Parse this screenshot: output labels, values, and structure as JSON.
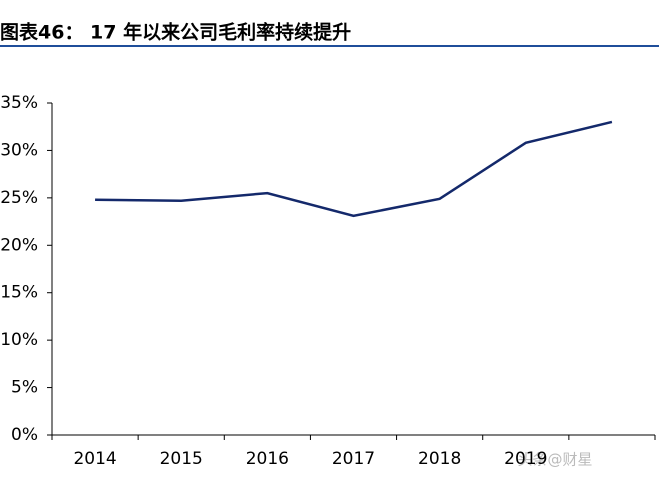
{
  "chart_data": {
    "type": "line",
    "title": "图表46：  17 年以来公司毛利率持续提升",
    "categories": [
      "2014",
      "2015",
      "2016",
      "2017",
      "2018",
      "2019",
      null
    ],
    "series": [
      {
        "name": "毛利率",
        "color": "#14296b",
        "values": [
          24.8,
          24.7,
          25.5,
          23.1,
          24.9,
          30.8,
          33.0
        ]
      }
    ],
    "ylim": [
      0,
      35
    ],
    "yticks": [
      {
        "value": 0,
        "label": "0%"
      },
      {
        "value": 5,
        "label": "5%"
      },
      {
        "value": 10,
        "label": "10%"
      },
      {
        "value": 15,
        "label": "15%"
      },
      {
        "value": 20,
        "label": "20%"
      },
      {
        "value": 25,
        "label": "25%"
      },
      {
        "value": 30,
        "label": "30%"
      },
      {
        "value": 35,
        "label": "35%"
      }
    ],
    "grid": false,
    "watermark": "头条@财星"
  }
}
